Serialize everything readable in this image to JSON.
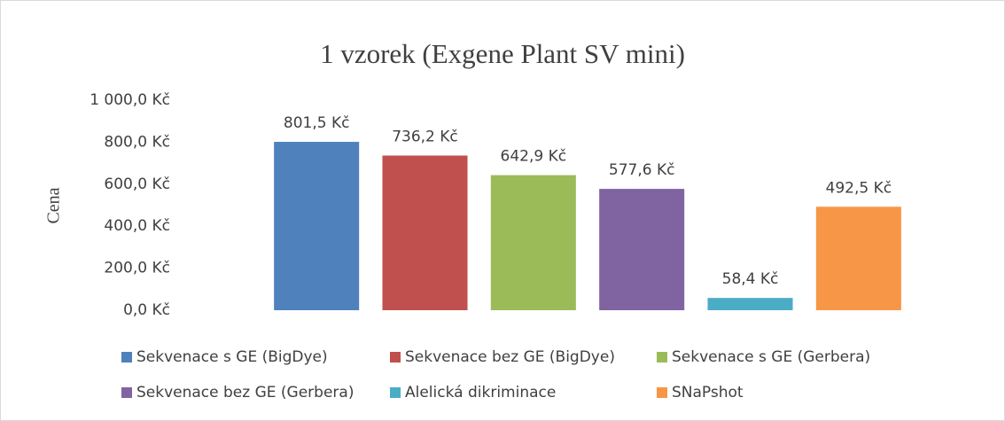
{
  "chart_data": {
    "type": "bar",
    "title": "1 vzorek (Exgene Plant SV mini)",
    "y_label": "Cena",
    "categories": [
      null
    ],
    "series": [
      {
        "name": "Sekvenace s GE (BigDye)",
        "color": "#4f81bd",
        "values": [
          801.5
        ],
        "value_labels": [
          "801,5 Kč"
        ]
      },
      {
        "name": "Sekvenace bez GE (BigDye)",
        "color": "#c0504d",
        "values": [
          736.2
        ],
        "value_labels": [
          "736,2 Kč"
        ]
      },
      {
        "name": "Sekvenace s GE (Gerbera)",
        "color": "#9bbb59",
        "values": [
          642.9
        ],
        "value_labels": [
          "642,9 Kč"
        ]
      },
      {
        "name": "Sekvenace bez GE (Gerbera)",
        "color": "#8064a2",
        "values": [
          577.6
        ],
        "value_labels": [
          "577,6 Kč"
        ]
      },
      {
        "name": "Alelická dikriminace",
        "color": "#4bacc6",
        "values": [
          58.4
        ],
        "value_labels": [
          "58,4 Kč"
        ]
      },
      {
        "name": "SNaPshot",
        "color": "#f79646",
        "values": [
          492.5
        ],
        "value_labels": [
          "492,5 Kč"
        ]
      }
    ],
    "ylim": [
      0,
      1000
    ],
    "yticks": [
      {
        "value": 0,
        "label": "0,0 Kč"
      },
      {
        "value": 200,
        "label": "200,0 Kč"
      },
      {
        "value": 400,
        "label": "400,0 Kč"
      },
      {
        "value": 600,
        "label": "600,0 Kč"
      },
      {
        "value": 800,
        "label": "800,0 Kč"
      },
      {
        "value": 1000,
        "label": "1 000,0 Kč"
      }
    ],
    "grid": false,
    "legend": "bottom"
  }
}
